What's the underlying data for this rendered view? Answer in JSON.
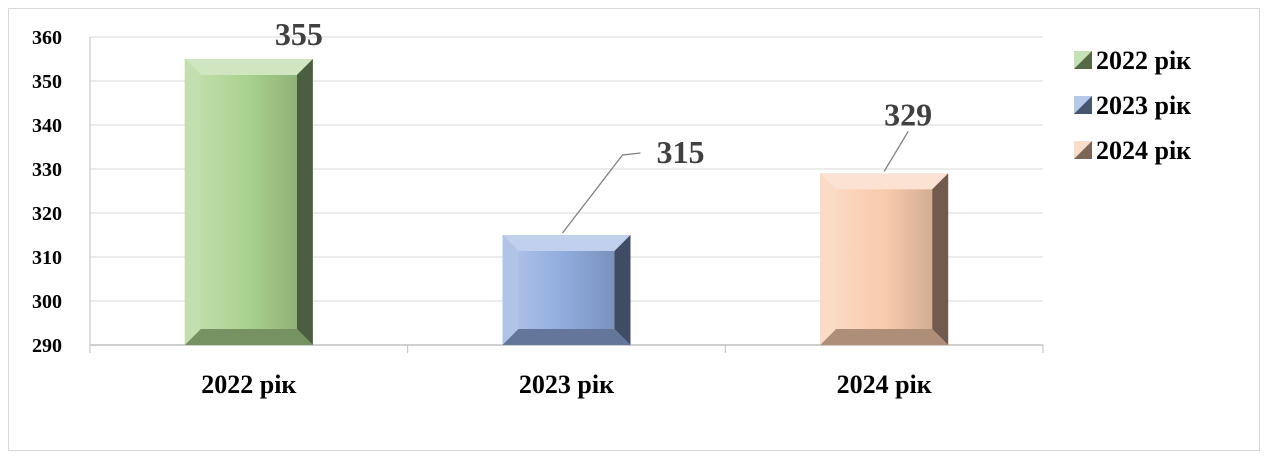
{
  "chart_data": {
    "type": "bar",
    "categories": [
      "2022 рік",
      "2023 рік",
      "2024 рік"
    ],
    "values": [
      355,
      315,
      329
    ],
    "ylim": [
      290,
      360
    ],
    "yticks": [
      290,
      300,
      310,
      320,
      330,
      340,
      350,
      360
    ],
    "grid": true,
    "legend_position": "right",
    "legend": [
      "2022 рік",
      "2023 рік",
      "2024 рік"
    ],
    "colors": [
      "#a9d18e",
      "#8faadc",
      "#f8cbad"
    ],
    "title": "",
    "xlabel": "",
    "ylabel": ""
  }
}
